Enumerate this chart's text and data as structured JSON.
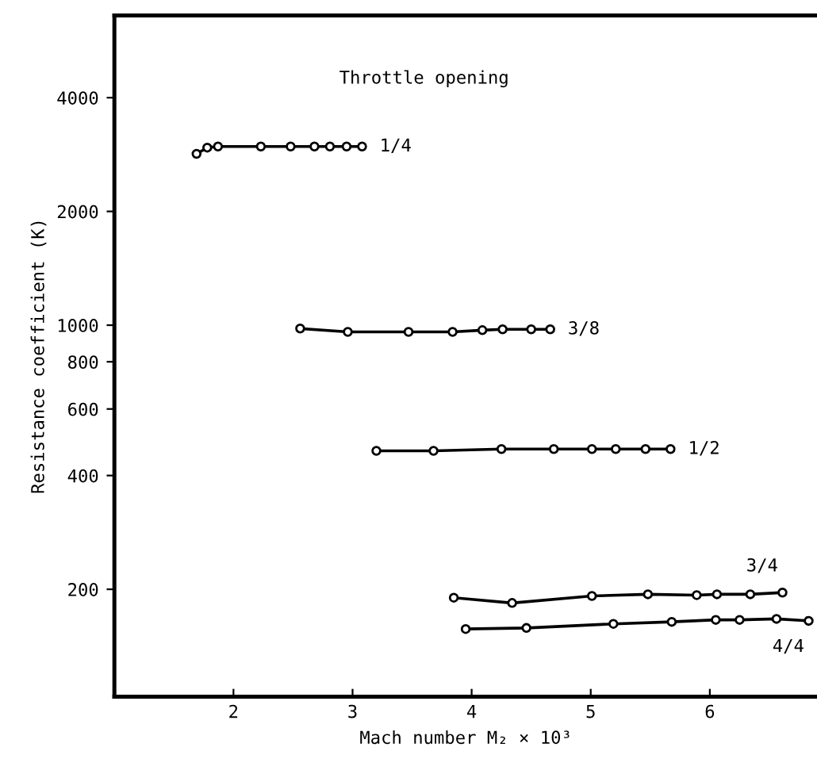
{
  "chart_data": {
    "type": "line",
    "xlabel": "Mach number M₂ × 10³",
    "ylabel": "Resistance coefficient (K)",
    "annotations": [
      "Throttle opening"
    ],
    "log": "y",
    "xlim": [
      1.0,
      6.9
    ],
    "ylim": [
      104,
      6600
    ],
    "xticks": [
      2,
      3,
      4,
      5,
      6
    ],
    "yticks": [
      200,
      400,
      600,
      800,
      1000,
      2000,
      4000
    ],
    "marker": "circle",
    "line_style": "solid",
    "grid": false,
    "legend": false,
    "series": [
      {
        "name": "1/4",
        "color": "#000000",
        "x": [
          1.69,
          1.78,
          1.87,
          2.23,
          2.48,
          2.68,
          2.81,
          2.95,
          3.08
        ],
        "values": [
          2840,
          2950,
          2970,
          2970,
          2970,
          2970,
          2970,
          2970,
          2970
        ]
      },
      {
        "name": "3/8",
        "color": "#000000",
        "x": [
          2.56,
          2.96,
          3.47,
          3.84,
          4.09,
          4.26,
          4.5,
          4.66
        ],
        "values": [
          980,
          960,
          960,
          960,
          970,
          975,
          975,
          975
        ]
      },
      {
        "name": "1/2",
        "color": "#000000",
        "x": [
          3.2,
          3.68,
          4.25,
          4.69,
          5.01,
          5.21,
          5.46,
          5.67
        ],
        "values": [
          465,
          465,
          470,
          470,
          470,
          470,
          470,
          470
        ]
      },
      {
        "name": "3/4",
        "color": "#000000",
        "x": [
          3.85,
          4.34,
          5.01,
          5.48,
          5.89,
          6.06,
          6.34,
          6.61
        ],
        "values": [
          190,
          184,
          192,
          194,
          193,
          194,
          194,
          196
        ]
      },
      {
        "name": "4/4",
        "color": "#000000",
        "x": [
          3.95,
          4.46,
          5.19,
          5.68,
          6.05,
          6.25,
          6.56,
          6.83
        ],
        "values": [
          157,
          158,
          162,
          164,
          166,
          166,
          167,
          165
        ]
      }
    ]
  }
}
